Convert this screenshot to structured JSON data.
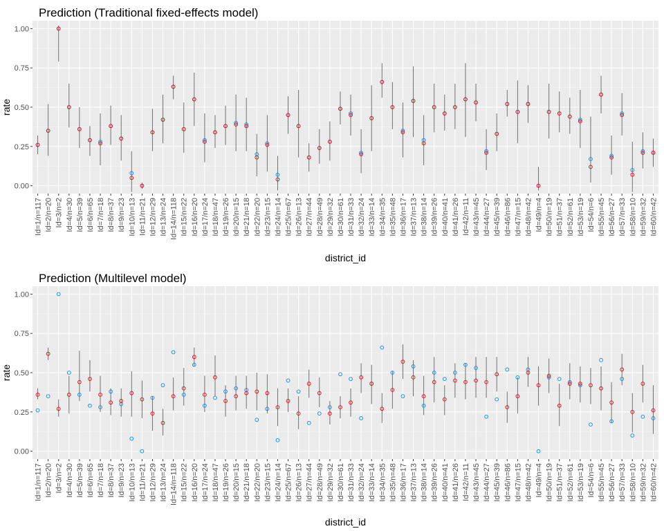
{
  "chart_data": [
    {
      "type": "scatter",
      "title": "Prediction (Traditional fixed-effects model)",
      "xlabel": "district_id",
      "ylabel": "rate",
      "ylim": [
        -0.05,
        1.05
      ],
      "yticks": [
        0.0,
        0.25,
        0.5,
        0.75,
        1.0
      ],
      "ytick_labels": [
        "0.00",
        "0.25",
        "0.50",
        "0.75",
        "1.00"
      ],
      "grid": true,
      "categories": [
        "Id=1/n=117",
        "Id=2/n=20",
        "Id=3/n=2",
        "Id=4/n=30",
        "Id=5/n=39",
        "Id=6/n=65",
        "Id=7/n=18",
        "Id=8/n=37",
        "Id=9/n=23",
        "Id=10/n=13",
        "Id=11/n=21",
        "Id=12/n=29",
        "Id=13/n=24",
        "Id=14/n=118",
        "Id=15/n=22",
        "Id=16/n=20",
        "Id=17/n=24",
        "Id=18/n=47",
        "Id=19/n=26",
        "Id=20/n=15",
        "Id=21/n=18",
        "Id=22/n=20",
        "Id=23/n=15",
        "Id=24/n=14",
        "Id=25/n=67",
        "Id=26/n=13",
        "Id=27/n=44",
        "Id=28/n=49",
        "Id=29/n=32",
        "Id=30/n=61",
        "Id=31/n=33",
        "Id=32/n=24",
        "Id=33/n=14",
        "Id=34/n=35",
        "Id=35/n=48",
        "Id=36/n=17",
        "Id=37/n=13",
        "Id=38/n=14",
        "Id=39/n=26",
        "Id=40/n=41",
        "Id=41/n=26",
        "Id=42/n=11",
        "Id=43/n=45",
        "Id=44/n=27",
        "Id=45/n=39",
        "Id=46/n=86",
        "Id=47/n=15",
        "Id=48/n=42",
        "Id=49/n=4",
        "Id=50/n=19",
        "Id=51/n=37",
        "Id=52/n=61",
        "Id=53/n=19",
        "Id=54/n=6",
        "Id=55/n=45",
        "Id=56/n=27",
        "Id=57/n=33",
        "Id=58/n=10",
        "Id=59/n=32",
        "Id=60/n=42"
      ],
      "series": [
        {
          "kind": "observed",
          "color": "#1e8fe0",
          "values": [
            0.26,
            0.35,
            1.0,
            0.5,
            0.36,
            0.29,
            0.28,
            0.38,
            0.3,
            0.08,
            0.0,
            0.34,
            0.42,
            0.63,
            0.36,
            0.55,
            0.29,
            0.34,
            0.38,
            0.4,
            0.39,
            0.2,
            0.27,
            0.07,
            0.45,
            0.38,
            0.18,
            0.24,
            0.28,
            0.49,
            0.46,
            0.21,
            0.43,
            0.66,
            0.5,
            0.35,
            0.54,
            0.29,
            0.5,
            0.46,
            0.5,
            0.55,
            0.53,
            0.22,
            0.33,
            0.52,
            0.47,
            0.52,
            0.0,
            0.47,
            0.46,
            0.44,
            0.42,
            0.17,
            0.58,
            0.19,
            0.46,
            0.1,
            0.22,
            0.21
          ]
        },
        {
          "kind": "predicted",
          "color": "#e0161b",
          "values": [
            0.26,
            0.35,
            1.0,
            0.5,
            0.36,
            0.29,
            0.27,
            0.38,
            0.3,
            0.05,
            0.0,
            0.34,
            0.42,
            0.63,
            0.36,
            0.55,
            0.28,
            0.34,
            0.38,
            0.39,
            0.38,
            0.18,
            0.26,
            0.04,
            0.45,
            0.38,
            0.18,
            0.24,
            0.28,
            0.49,
            0.45,
            0.2,
            0.43,
            0.66,
            0.5,
            0.34,
            0.54,
            0.27,
            0.5,
            0.46,
            0.5,
            0.55,
            0.53,
            0.21,
            0.33,
            0.52,
            0.47,
            0.52,
            0.0,
            0.47,
            0.46,
            0.44,
            0.41,
            0.12,
            0.58,
            0.18,
            0.45,
            0.07,
            0.21,
            0.21
          ]
        }
      ],
      "interval_color": "#6e6e6e",
      "lower": [
        0.2,
        0.19,
        0.79,
        0.37,
        0.24,
        0.19,
        0.13,
        0.26,
        0.16,
        -0.04,
        -0.02,
        0.22,
        0.27,
        0.55,
        0.21,
        0.38,
        0.15,
        0.24,
        0.26,
        0.22,
        0.22,
        0.06,
        0.09,
        -0.03,
        0.33,
        0.18,
        0.09,
        0.14,
        0.16,
        0.39,
        0.32,
        0.08,
        0.22,
        0.56,
        0.36,
        0.18,
        0.31,
        0.13,
        0.34,
        0.35,
        0.36,
        0.31,
        0.41,
        0.1,
        0.22,
        0.44,
        0.27,
        0.4,
        -0.03,
        0.3,
        0.34,
        0.33,
        0.24,
        0.02,
        0.46,
        0.07,
        0.32,
        -0.04,
        0.11,
        0.12
      ],
      "upper": [
        0.32,
        0.52,
        1.02,
        0.65,
        0.5,
        0.38,
        0.46,
        0.51,
        0.45,
        0.22,
        0.02,
        0.49,
        0.58,
        0.7,
        0.53,
        0.72,
        0.46,
        0.45,
        0.51,
        0.58,
        0.56,
        0.33,
        0.45,
        0.19,
        0.57,
        0.61,
        0.27,
        0.36,
        0.41,
        0.6,
        0.58,
        0.36,
        0.64,
        0.78,
        0.66,
        0.53,
        0.76,
        0.45,
        0.65,
        0.58,
        0.65,
        0.78,
        0.65,
        0.36,
        0.46,
        0.61,
        0.67,
        0.64,
        0.12,
        0.65,
        0.6,
        0.56,
        0.61,
        0.44,
        0.7,
        0.32,
        0.59,
        0.28,
        0.34,
        0.3
      ]
    },
    {
      "type": "scatter",
      "title": "Prediction (Multilevel model)",
      "xlabel": "district_id",
      "ylabel": "rate",
      "ylim": [
        -0.05,
        1.05
      ],
      "yticks": [
        0.0,
        0.25,
        0.5,
        0.75,
        1.0
      ],
      "ytick_labels": [
        "0.00",
        "0.25",
        "0.50",
        "0.75",
        "1.00"
      ],
      "grid": true,
      "categories": [
        "Id=1/n=117",
        "Id=2/n=20",
        "Id=3/n=2",
        "Id=4/n=30",
        "Id=5/n=39",
        "Id=6/n=65",
        "Id=7/n=18",
        "Id=8/n=37",
        "Id=9/n=23",
        "Id=10/n=13",
        "Id=11/n=21",
        "Id=12/n=29",
        "Id=13/n=24",
        "Id=14/n=118",
        "Id=15/n=22",
        "Id=16/n=20",
        "Id=17/n=24",
        "Id=18/n=47",
        "Id=19/n=26",
        "Id=20/n=15",
        "Id=21/n=18",
        "Id=22/n=20",
        "Id=23/n=15",
        "Id=24/n=14",
        "Id=25/n=67",
        "Id=26/n=13",
        "Id=27/n=44",
        "Id=28/n=49",
        "Id=29/n=32",
        "Id=30/n=61",
        "Id=31/n=33",
        "Id=32/n=24",
        "Id=33/n=14",
        "Id=34/n=35",
        "Id=35/n=48",
        "Id=36/n=17",
        "Id=37/n=13",
        "Id=38/n=14",
        "Id=39/n=26",
        "Id=40/n=41",
        "Id=41/n=26",
        "Id=42/n=11",
        "Id=43/n=45",
        "Id=44/n=27",
        "Id=45/n=39",
        "Id=46/n=86",
        "Id=47/n=15",
        "Id=48/n=42",
        "Id=49/n=4",
        "Id=50/n=19",
        "Id=51/n=37",
        "Id=52/n=61",
        "Id=53/n=19",
        "Id=54/n=6",
        "Id=55/n=45",
        "Id=56/n=27",
        "Id=57/n=33",
        "Id=58/n=10",
        "Id=59/n=32",
        "Id=60/n=42"
      ],
      "series": [
        {
          "kind": "observed",
          "color": "#1e8fe0",
          "values": [
            0.26,
            0.35,
            1.0,
            0.5,
            0.36,
            0.29,
            0.28,
            0.38,
            0.3,
            0.08,
            0.0,
            0.34,
            0.42,
            0.63,
            0.36,
            0.55,
            0.29,
            0.34,
            0.38,
            0.4,
            0.39,
            0.2,
            0.27,
            0.07,
            0.45,
            0.38,
            0.18,
            0.24,
            0.28,
            0.49,
            0.46,
            0.21,
            0.43,
            0.66,
            0.5,
            0.35,
            0.54,
            0.29,
            0.5,
            0.46,
            0.5,
            0.55,
            0.53,
            0.22,
            0.33,
            0.52,
            0.47,
            0.52,
            0.0,
            0.47,
            0.46,
            0.44,
            0.42,
            0.17,
            0.58,
            0.19,
            0.46,
            0.1,
            0.22,
            0.21
          ]
        },
        {
          "kind": "predicted",
          "color": "#e0161b",
          "values": [
            0.36,
            0.62,
            0.27,
            0.36,
            0.44,
            0.46,
            0.36,
            0.31,
            0.32,
            0.37,
            0.33,
            0.24,
            0.18,
            0.35,
            0.4,
            0.6,
            0.36,
            0.47,
            0.32,
            0.35,
            0.37,
            0.38,
            0.37,
            0.28,
            0.32,
            0.24,
            0.43,
            0.37,
            0.24,
            0.28,
            0.31,
            0.47,
            0.43,
            0.27,
            0.39,
            0.57,
            0.47,
            0.35,
            0.44,
            0.33,
            0.45,
            0.44,
            0.45,
            0.44,
            0.49,
            0.28,
            0.35,
            0.5,
            0.42,
            0.48,
            0.29,
            0.43,
            0.43,
            0.42,
            0.4,
            0.31,
            0.52,
            0.25,
            0.43,
            0.26
          ]
        }
      ],
      "interval_color": "#6e6e6e",
      "lower": [
        0.33,
        0.58,
        0.22,
        0.24,
        0.32,
        0.38,
        0.25,
        0.23,
        0.22,
        0.22,
        0.21,
        0.13,
        0.1,
        0.26,
        0.29,
        0.54,
        0.25,
        0.35,
        0.22,
        0.26,
        0.27,
        0.26,
        0.24,
        0.16,
        0.25,
        0.14,
        0.34,
        0.28,
        0.17,
        0.21,
        0.22,
        0.37,
        0.3,
        0.18,
        0.27,
        0.46,
        0.35,
        0.23,
        0.31,
        0.23,
        0.34,
        0.33,
        0.34,
        0.34,
        0.38,
        0.18,
        0.24,
        0.41,
        0.29,
        0.37,
        0.16,
        0.33,
        0.31,
        0.3,
        0.26,
        0.18,
        0.42,
        0.12,
        0.31,
        0.11
      ],
      "upper": [
        0.4,
        0.66,
        0.33,
        0.48,
        0.64,
        0.58,
        0.48,
        0.4,
        0.4,
        0.51,
        0.45,
        0.35,
        0.27,
        0.47,
        0.53,
        0.66,
        0.48,
        0.61,
        0.42,
        0.48,
        0.48,
        0.5,
        0.49,
        0.4,
        0.4,
        0.35,
        0.52,
        0.47,
        0.32,
        0.35,
        0.4,
        0.56,
        0.55,
        0.37,
        0.51,
        0.68,
        0.58,
        0.48,
        0.6,
        0.42,
        0.56,
        0.56,
        0.6,
        0.6,
        0.6,
        0.38,
        0.47,
        0.6,
        0.54,
        0.59,
        0.43,
        0.56,
        0.54,
        0.53,
        0.54,
        0.44,
        0.62,
        0.37,
        0.55,
        0.42
      ]
    }
  ]
}
